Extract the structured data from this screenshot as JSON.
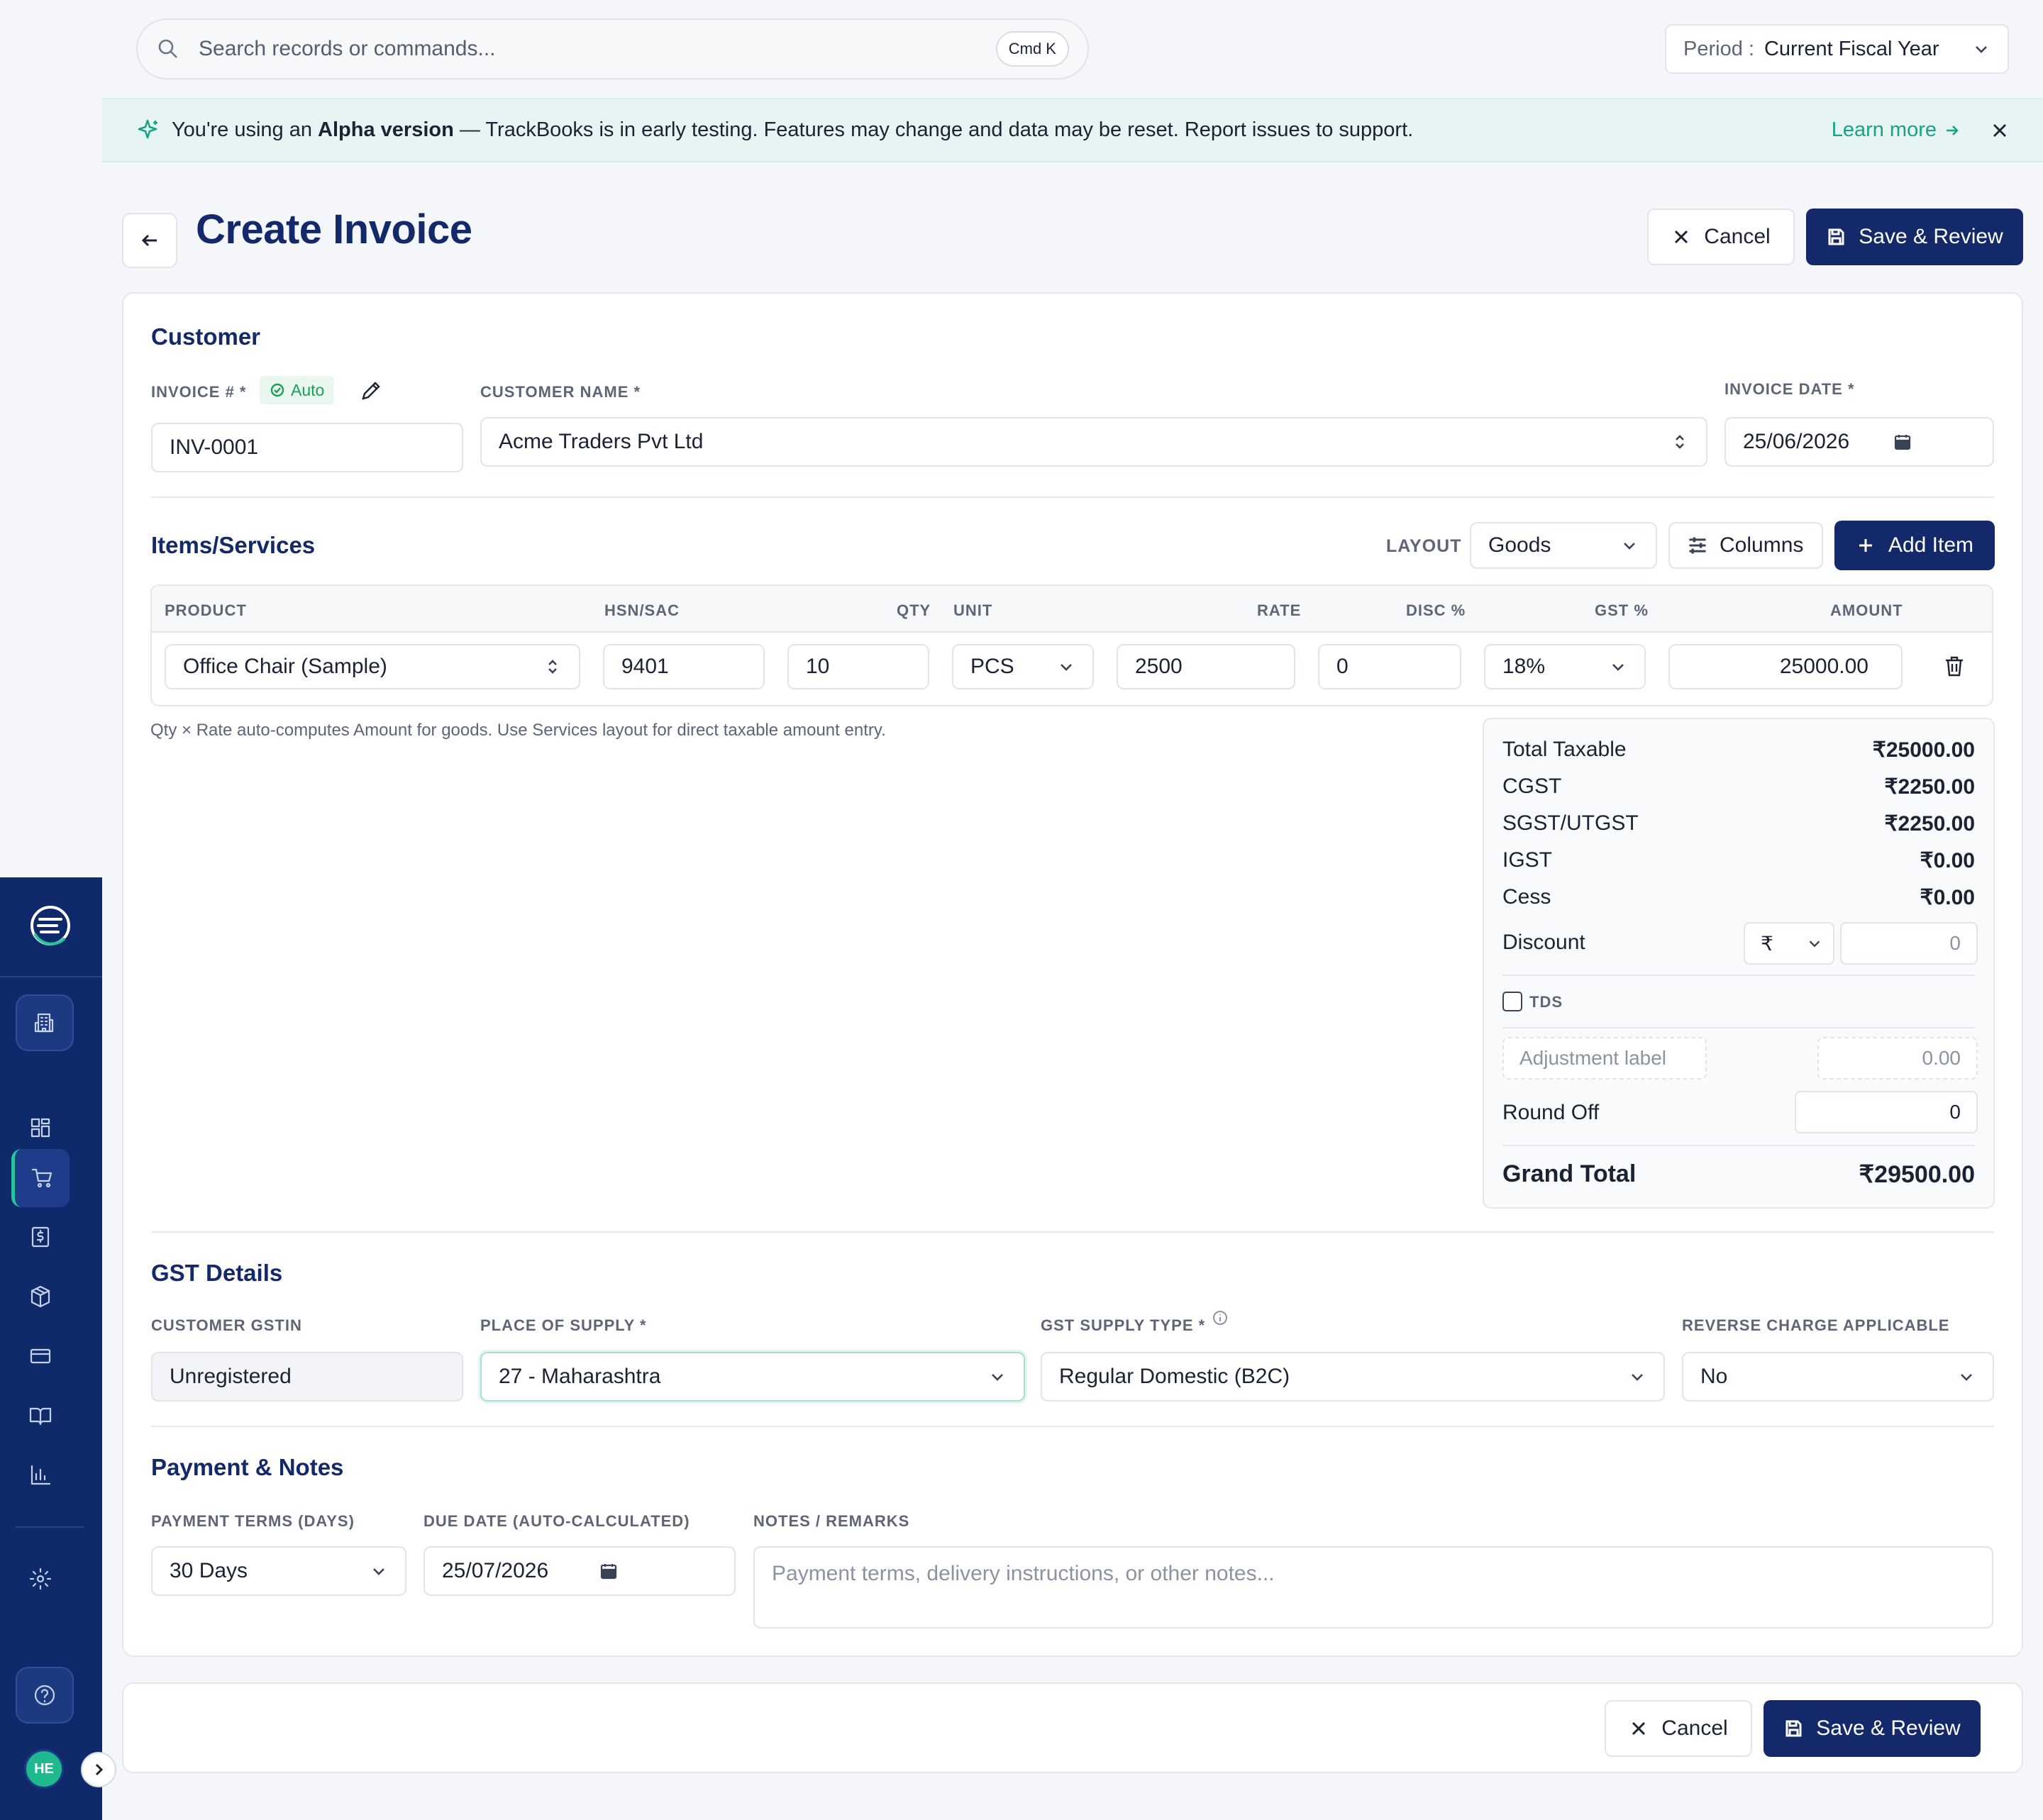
{
  "topbar": {
    "search_placeholder": "Search records or commands...",
    "shortcut": "Cmd K",
    "period_label": "Period :",
    "period_value": "Current Fiscal Year"
  },
  "banner": {
    "prefix": "You're using an",
    "emphasis": "Alpha version",
    "message": "— TrackBooks is in early testing. Features may change and data may be reset. Report issues to support.",
    "link": "Learn more"
  },
  "header": {
    "title": "Create Invoice",
    "cancel_label": "Cancel",
    "save_label": "Save & Review"
  },
  "customer": {
    "section_title": "Customer",
    "invoice_label": "INVOICE # *",
    "auto_badge": "Auto",
    "invoice_value": "INV-0001",
    "name_label": "CUSTOMER NAME *",
    "name_value": "Acme Traders Pvt Ltd",
    "date_label": "INVOICE DATE *",
    "date_value": "25/06/2026"
  },
  "items": {
    "section_title": "Items/Services",
    "layout_label": "LAYOUT",
    "layout_value": "Goods",
    "columns_label": "Columns",
    "add_label": "Add Item",
    "headers": [
      "PRODUCT",
      "HSN/SAC",
      "QTY",
      "UNIT",
      "RATE",
      "DISC %",
      "GST %",
      "AMOUNT"
    ],
    "row": {
      "product": "Office Chair (Sample)",
      "hsn": "9401",
      "qty": "10",
      "unit": "PCS",
      "rate": "2500",
      "disc": "0",
      "gst": "18%",
      "amount": "25000.00"
    },
    "hint": "Qty × Rate auto-computes Amount for goods. Use Services layout for direct taxable amount entry."
  },
  "summary": {
    "rows": [
      {
        "label": "Total Taxable",
        "value": "₹25000.00"
      },
      {
        "label": "CGST",
        "value": "₹2250.00"
      },
      {
        "label": "SGST/UTGST",
        "value": "₹2250.00"
      },
      {
        "label": "IGST",
        "value": "₹0.00"
      },
      {
        "label": "Cess",
        "value": "₹0.00"
      }
    ],
    "discount_label": "Discount",
    "discount_unit": "₹",
    "discount_value": "0",
    "tds_label": "TDS",
    "adjustment_placeholder": "Adjustment label",
    "adjustment_value": "0.00",
    "round_off_label": "Round Off",
    "round_off_value": "0",
    "grand_total_label": "Grand Total",
    "grand_total_value": "₹29500.00"
  },
  "gst": {
    "section_title": "GST Details",
    "gstin_label": "CUSTOMER GSTIN",
    "gstin_value": "Unregistered",
    "pos_label": "PLACE OF SUPPLY *",
    "pos_value": "27 - Maharashtra",
    "type_label": "GST SUPPLY TYPE *",
    "type_value": "Regular Domestic (B2C)",
    "reverse_label": "REVERSE CHARGE APPLICABLE",
    "reverse_value": "No"
  },
  "payment": {
    "section_title": "Payment & Notes",
    "terms_label": "PAYMENT TERMS (DAYS)",
    "terms_value": "30 Days",
    "due_label": "DUE DATE (AUTO-CALCULATED)",
    "due_value": "25/07/2026",
    "notes_label": "NOTES / REMARKS",
    "notes_placeholder": "Payment terms, delivery instructions, or other notes..."
  },
  "footer": {
    "cancel_label": "Cancel",
    "save_label": "Save & Review"
  },
  "user": {
    "initials": "HE"
  },
  "colors": {
    "brand": "#13296a",
    "sidebar": "#0f2a6b",
    "accent": "#1fb88f",
    "banner_bg": "#e6f5f3"
  }
}
